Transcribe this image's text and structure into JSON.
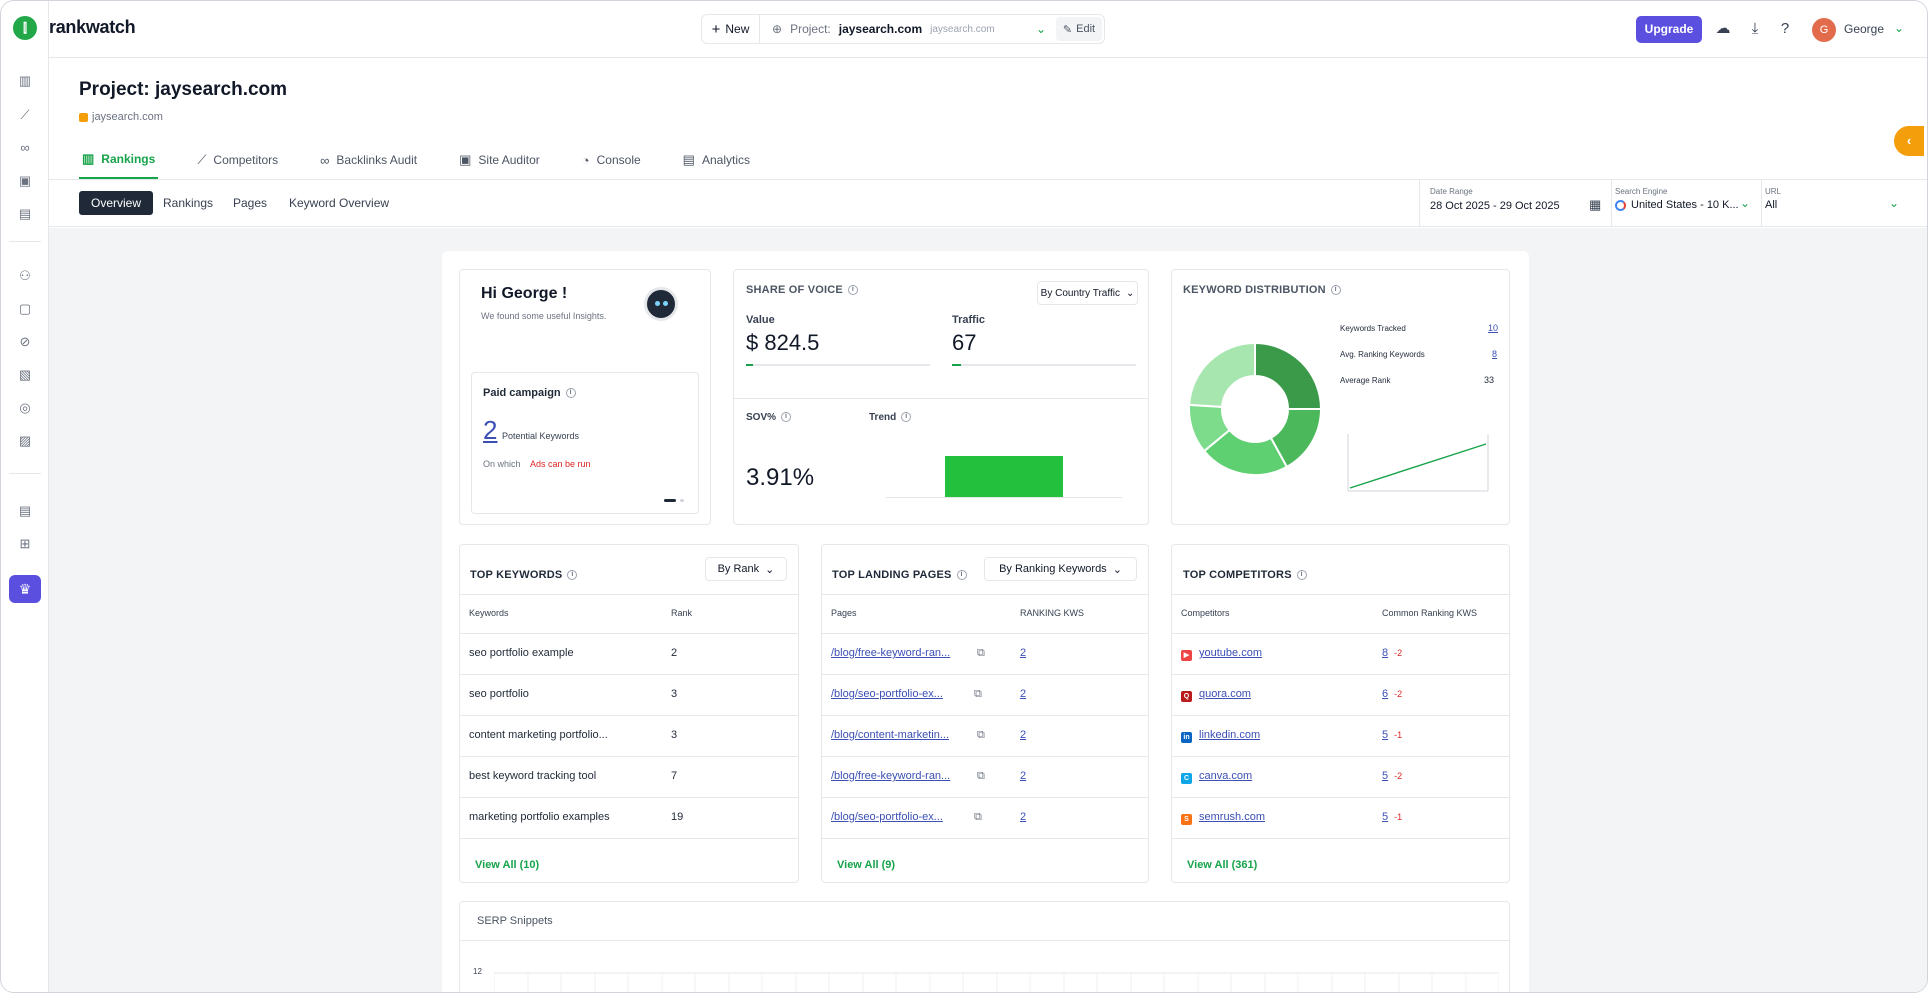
{
  "app": {
    "brand": "rankwatch"
  },
  "topbar": {
    "new_label": "New",
    "project_label": "Project:",
    "project_name": "jaysearch.com",
    "project_url": "jaysearch.com",
    "edit_label": "Edit",
    "upgrade_label": "Upgrade",
    "user_name": "George",
    "user_initial": "G"
  },
  "page": {
    "title": "Project: jaysearch.com",
    "subtitle": "jaysearch.com"
  },
  "main_tabs": [
    {
      "label": "Rankings",
      "icon": "bar-chart-icon"
    },
    {
      "label": "Competitors",
      "icon": "competitors-icon"
    },
    {
      "label": "Backlinks Audit",
      "icon": "link-icon"
    },
    {
      "label": "Site Auditor",
      "icon": "monitor-icon"
    },
    {
      "label": "Console",
      "icon": "console-icon"
    },
    {
      "label": "Analytics",
      "icon": "analytics-icon"
    }
  ],
  "sub_tabs": [
    "Overview",
    "Rankings",
    "Pages",
    "Keyword Overview"
  ],
  "filters": {
    "date_range_label": "Date Range",
    "date_range_value": "28 Oct 2025 - 29 Oct 2025",
    "search_engine_label": "Search Engine",
    "search_engine_value": "United States - 10 K...",
    "url_label": "URL",
    "url_value": "All"
  },
  "greeting": {
    "title": "Hi George !",
    "subtitle": "We found some useful Insights.",
    "paid_title": "Paid campaign",
    "paid_count": "2",
    "paid_desc": "Potential Keywords",
    "on_which": "On which",
    "ads_text": "Ads can be run"
  },
  "sov": {
    "title": "SHARE OF VOICE",
    "dropdown": "By Country Traffic",
    "value_label": "Value",
    "value": "$ 824.5",
    "value_fill": 0.04,
    "traffic_label": "Traffic",
    "traffic": "67",
    "traffic_fill": 0.05,
    "sov_label": "SOV%",
    "sov_value": "3.91%",
    "trend_label": "Trend"
  },
  "kd": {
    "title": "KEYWORD DISTRIBUTION",
    "rows": [
      {
        "label": "Keywords Tracked",
        "value": "10",
        "link": true
      },
      {
        "label": "Avg. Ranking Keywords",
        "value": "8",
        "link": true
      },
      {
        "label": "Average Rank",
        "value": "33",
        "link": false
      }
    ],
    "donut": [
      {
        "value": 25,
        "color": "#3a9a4a"
      },
      {
        "value": 17,
        "color": "#4cb85c"
      },
      {
        "value": 22,
        "color": "#5fd072"
      },
      {
        "value": 12,
        "color": "#7ddc8c"
      },
      {
        "value": 24,
        "color": "#a8e6b0"
      }
    ]
  },
  "top_keywords": {
    "title": "TOP KEYWORDS",
    "dropdown": "By Rank",
    "headers": [
      "Keywords",
      "Rank"
    ],
    "rows": [
      [
        "seo portfolio example",
        "2"
      ],
      [
        "seo portfolio",
        "3"
      ],
      [
        "content marketing portfolio...",
        "3"
      ],
      [
        "best keyword tracking tool",
        "7"
      ],
      [
        "marketing portfolio examples",
        "19"
      ]
    ],
    "view_all": "View All (10)"
  },
  "top_pages": {
    "title": "TOP LANDING PAGES",
    "dropdown": "By Ranking Keywords",
    "headers": [
      "Pages",
      "RANKING KWS"
    ],
    "rows": [
      [
        "/blog/free-keyword-ran...",
        "2"
      ],
      [
        "/blog/seo-portfolio-ex...",
        "2"
      ],
      [
        "/blog/content-marketin...",
        "2"
      ],
      [
        "/blog/free-keyword-ran...",
        "2"
      ],
      [
        "/blog/seo-portfolio-ex...",
        "2"
      ]
    ],
    "view_all": "View All (9)"
  },
  "top_competitors": {
    "title": "TOP COMPETITORS",
    "headers": [
      "Competitors",
      "Common Ranking KWS"
    ],
    "rows": [
      {
        "name": "youtube.com",
        "count": "8",
        "delta": "-2",
        "color": "#ef4444",
        "glyph": "▶"
      },
      {
        "name": "quora.com",
        "count": "6",
        "delta": "-2",
        "color": "#b91c1c",
        "glyph": "Q"
      },
      {
        "name": "linkedin.com",
        "count": "5",
        "delta": "-1",
        "color": "#0a66c2",
        "glyph": "in"
      },
      {
        "name": "canva.com",
        "count": "5",
        "delta": "-2",
        "color": "#0ea5e9",
        "glyph": "C"
      },
      {
        "name": "semrush.com",
        "count": "5",
        "delta": "-1",
        "color": "#f97316",
        "glyph": "S"
      }
    ],
    "view_all": "View All (361)"
  },
  "serp": {
    "title": "SERP Snippets",
    "y_tick": "12"
  }
}
